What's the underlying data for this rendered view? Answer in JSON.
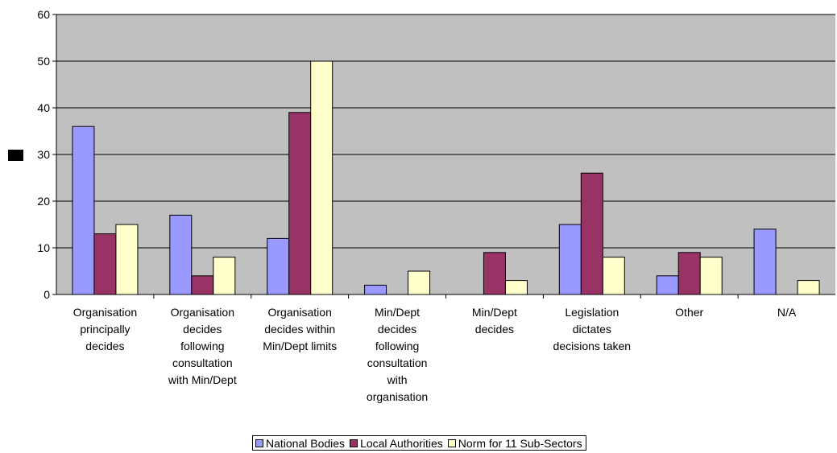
{
  "chart_data": {
    "type": "bar",
    "categories": [
      "Organisation principally decides",
      "Organisation decides following consultation with Min/Dept",
      "Organisation decides within Min/Dept limits",
      "Min/Dept decides following consultation with organisation",
      "Min/Dept decides",
      "Legislation dictates decisions taken",
      "Other",
      "N/A"
    ],
    "category_label_lines": [
      [
        "Organisation",
        "principally",
        "decides"
      ],
      [
        "Organisation",
        "decides",
        "following",
        "consultation",
        "with Min/Dept"
      ],
      [
        "Organisation",
        "decides within",
        "Min/Dept limits"
      ],
      [
        "Min/Dept",
        "decides",
        "following",
        "consultation",
        "with",
        "organisation"
      ],
      [
        "Min/Dept",
        "decides"
      ],
      [
        "Legislation",
        "dictates",
        "decisions taken"
      ],
      [
        "Other"
      ],
      [
        "N/A"
      ]
    ],
    "series": [
      {
        "name": "National Bodies",
        "color": "#9999ff",
        "values": [
          36,
          17,
          12,
          2,
          null,
          15,
          4,
          14
        ]
      },
      {
        "name": "Local Authorities",
        "color": "#993366",
        "values": [
          13,
          4,
          39,
          null,
          9,
          26,
          9,
          null
        ]
      },
      {
        "name": "Norm for 11 Sub-Sectors",
        "color": "#ffffcc",
        "values": [
          15,
          8,
          50,
          5,
          3,
          8,
          8,
          3
        ]
      }
    ],
    "ylim": [
      0,
      60
    ],
    "yticks": [
      0,
      10,
      20,
      30,
      40,
      50,
      60
    ],
    "plot_background": "#c0c0c0",
    "grid": true,
    "legend_position": "bottom"
  }
}
